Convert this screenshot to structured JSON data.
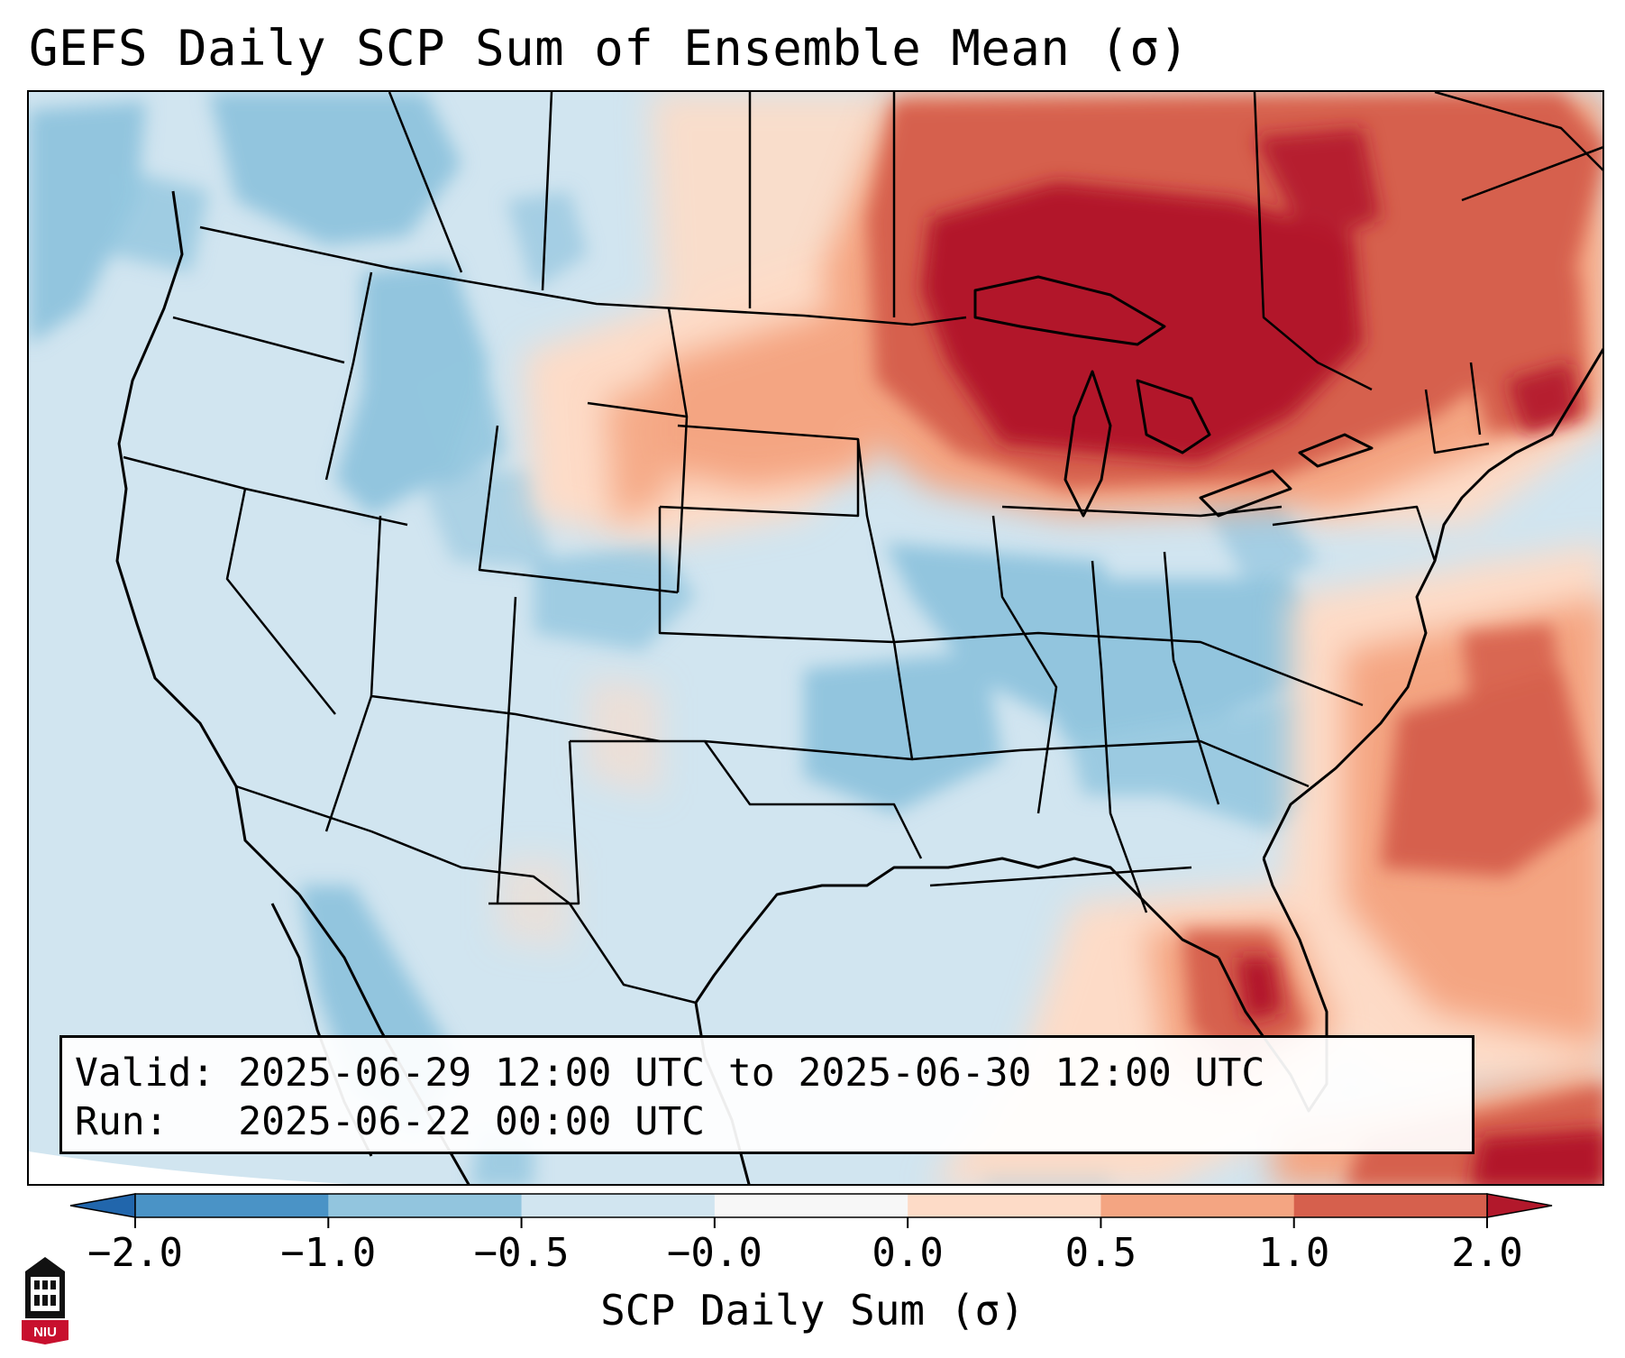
{
  "title": "GEFS Daily SCP Sum of Ensemble Mean (σ)",
  "info": {
    "valid_label": "Valid:",
    "valid_value": "2025-06-29 12:00 UTC to 2025-06-30 12:00 UTC",
    "run_label": "Run:",
    "run_value": "2025-06-22 00:00 UTC"
  },
  "colorbar": {
    "title": "SCP Daily Sum (σ)",
    "tick_labels": [
      "−2.0",
      "−1.0",
      "−0.5",
      "−0.0",
      "0.0",
      "0.5",
      "1.0",
      "2.0"
    ],
    "bins": [
      {
        "range": "−2.0 to −1.0",
        "color": "#4a93c6"
      },
      {
        "range": "−1.0 to −0.5",
        "color": "#92c5de"
      },
      {
        "range": "−0.5 to −0.0",
        "color": "#d1e5f0"
      },
      {
        "range": "−0.0 to 0.0",
        "color": "#f7f7f7"
      },
      {
        "range": "0.0 to 0.5",
        "color": "#fddbc7"
      },
      {
        "range": "0.5 to 1.0",
        "color": "#f4a582"
      },
      {
        "range": "1.0 to 2.0",
        "color": "#d6604d"
      }
    ],
    "under_color": "#2166ac",
    "over_color": "#b2182b"
  },
  "map_fields": [
    {
      "region": "Great Lakes / Ontario / Quebec",
      "level": "above 2.0",
      "color": "#b2182b"
    },
    {
      "region": "Upper Midwest / Northern Plains",
      "level": "1.0 to 2.0",
      "color": "#d6604d"
    },
    {
      "region": "Northeast / New England",
      "level": "0.5 to 2.0",
      "color": "#d6604d"
    },
    {
      "region": "Northern High Plains",
      "level": "0.0 to 1.0",
      "color": "#f4a582"
    },
    {
      "region": "Western Atlantic",
      "level": "1.0 to 2.0",
      "color": "#d6604d"
    },
    {
      "region": "Florida / Gulf coast",
      "level": "1.0 to 2.0",
      "color": "#d6604d"
    },
    {
      "region": "Mid-Mississippi / Ohio / Tennessee valleys",
      "level": "−1.0 to −0.5",
      "color": "#92c5de"
    },
    {
      "region": "Idaho / Pacific Northwest",
      "level": "−1.0 to −0.5",
      "color": "#92c5de"
    },
    {
      "region": "Southwest / Southern Plains",
      "level": "−0.5 to −0.0",
      "color": "#d1e5f0"
    }
  ],
  "logo": {
    "text": "NIU",
    "colors": {
      "red": "#c8102e",
      "black": "#111111"
    }
  }
}
